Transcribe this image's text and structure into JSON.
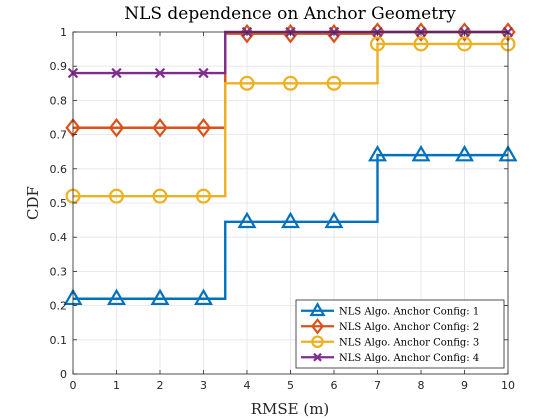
{
  "chart_data": {
    "type": "line",
    "title": "NLS dependence on Anchor Geometry",
    "xlabel": "RMSE (m)",
    "ylabel": "CDF",
    "xlim": [
      0,
      10
    ],
    "ylim": [
      0,
      1
    ],
    "xticks": [
      0,
      1,
      2,
      3,
      4,
      5,
      6,
      7,
      8,
      9,
      10
    ],
    "yticks": [
      0,
      0.1,
      0.2,
      0.3,
      0.4,
      0.5,
      0.6,
      0.7,
      0.8,
      0.9,
      1
    ],
    "step_style": "post",
    "grid": true,
    "legend_position": "bottom-right",
    "x": [
      0,
      1,
      2,
      3,
      4,
      5,
      6,
      7,
      8,
      9,
      10
    ],
    "series": [
      {
        "name": "NLS Algo. Anchor Config: 1",
        "color": "#0072BD",
        "marker": "triangle",
        "values": [
          0.22,
          0.22,
          0.22,
          0.22,
          0.445,
          0.445,
          0.445,
          0.64,
          0.64,
          0.64,
          0.64
        ],
        "steps": [
          [
            0,
            0.22
          ],
          [
            3.5,
            0.445
          ],
          [
            7,
            0.64
          ],
          [
            10,
            0.64
          ]
        ]
      },
      {
        "name": "NLS Algo. Anchor Config: 2",
        "color": "#D95319",
        "marker": "diamond",
        "values": [
          0.72,
          0.72,
          0.72,
          0.72,
          0.995,
          0.995,
          0.995,
          1.0,
          1.0,
          1.0,
          1.0
        ],
        "steps": [
          [
            0,
            0.72
          ],
          [
            3.5,
            0.995
          ],
          [
            7,
            1.0
          ],
          [
            10,
            1.0
          ]
        ]
      },
      {
        "name": "NLS Algo. Anchor Config: 3",
        "color": "#EDB120",
        "marker": "circle",
        "values": [
          0.52,
          0.52,
          0.52,
          0.52,
          0.85,
          0.85,
          0.85,
          0.965,
          0.965,
          0.965,
          0.965
        ],
        "steps": [
          [
            0,
            0.52
          ],
          [
            3.5,
            0.85
          ],
          [
            7,
            0.965
          ],
          [
            10,
            0.965
          ]
        ]
      },
      {
        "name": "NLS Algo. Anchor Config: 4",
        "color": "#7E2F8E",
        "marker": "x",
        "values": [
          0.88,
          0.88,
          0.88,
          0.88,
          1.0,
          1.0,
          1.0,
          1.0,
          1.0,
          1.0,
          1.0
        ],
        "steps": [
          [
            0,
            0.88
          ],
          [
            3.5,
            1.0
          ],
          [
            10,
            1.0
          ]
        ]
      }
    ]
  }
}
